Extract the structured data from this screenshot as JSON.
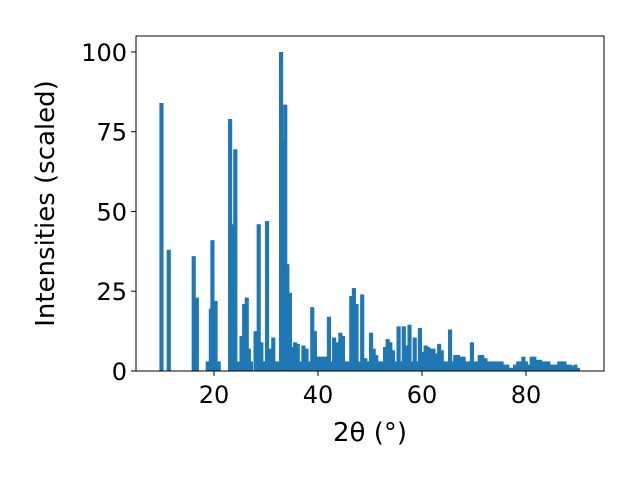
{
  "chart_data": {
    "type": "bar",
    "xlabel": "2θ (°)",
    "ylabel": "Intensities (scaled)",
    "xlim": [
      5,
      95
    ],
    "ylim": [
      0,
      105
    ],
    "xticks": [
      "20",
      "40",
      "60",
      "80"
    ],
    "yticks": [
      "0",
      "25",
      "50",
      "75",
      "100"
    ],
    "grid": false,
    "color": "#1f77b4",
    "bar_width": 0.8,
    "x": [
      9.9,
      11.3,
      16.1,
      16.7,
      18.8,
      19.4,
      19.7,
      20.3,
      20.9,
      23.1,
      23.6,
      24.1,
      24.5,
      25.3,
      25.8,
      26.3,
      26.7,
      27.1,
      28.0,
      28.6,
      29.1,
      29.7,
      30.2,
      30.8,
      31.4,
      31.9,
      32.4,
      32.9,
      33.3,
      33.7,
      34.1,
      34.6,
      35.1,
      35.6,
      36.1,
      36.7,
      37.2,
      37.8,
      38.3,
      38.9,
      39.4,
      39.9,
      40.4,
      41.0,
      41.6,
      42.1,
      42.6,
      43.1,
      43.7,
      44.3,
      44.8,
      45.3,
      45.9,
      46.4,
      46.9,
      47.4,
      48.0,
      48.5,
      49.1,
      49.6,
      50.2,
      50.7,
      51.2,
      51.8,
      52.3,
      52.9,
      53.4,
      53.9,
      54.4,
      55.0,
      55.5,
      56.0,
      56.5,
      57.0,
      57.6,
      58.1,
      58.6,
      59.1,
      59.6,
      60.2,
      60.7,
      61.2,
      61.7,
      62.2,
      62.8,
      63.3,
      63.8,
      64.4,
      64.9,
      65.4,
      65.9,
      66.4,
      66.9,
      67.5,
      68.0,
      68.5,
      69.1,
      69.6,
      70.1,
      70.6,
      71.1,
      71.6,
      72.2,
      72.7,
      73.2,
      73.7,
      74.3,
      74.8,
      75.3,
      75.8,
      76.4,
      76.9,
      77.4,
      77.9,
      78.5,
      79.0,
      79.5,
      80.0,
      80.6,
      81.1,
      81.6,
      82.2,
      82.7,
      83.2,
      83.7,
      84.3,
      84.8,
      85.3,
      85.8,
      86.4,
      86.9,
      87.4,
      87.9,
      88.5,
      89.0,
      89.5,
      90.0
    ],
    "values": [
      84,
      38,
      36,
      23,
      3,
      19.5,
      41,
      22,
      3,
      79,
      46,
      69.5,
      3,
      11,
      21,
      23,
      7,
      3,
      12.5,
      46,
      9,
      3,
      47,
      7,
      10.5,
      3,
      3,
      100,
      72,
      83.5,
      33.5,
      24.5,
      7.5,
      9,
      8.5,
      3,
      8,
      7,
      3,
      20,
      12.5,
      4.5,
      4.5,
      4.5,
      4.5,
      17,
      3,
      10.5,
      9,
      12,
      11,
      3,
      3,
      23.5,
      26,
      21,
      3,
      24,
      4,
      3,
      12,
      7,
      5,
      3,
      3,
      7.5,
      10,
      9,
      6.5,
      3,
      14,
      3,
      14,
      8,
      14.5,
      3,
      10.5,
      3,
      13.5,
      6,
      8,
      7.5,
      7,
      7,
      5.5,
      8.5,
      6.5,
      3,
      3,
      13,
      3,
      5,
      5,
      4.5,
      4.5,
      3,
      3,
      9,
      3,
      3,
      5,
      5,
      4,
      3,
      3,
      3,
      3,
      3,
      3,
      2,
      2,
      1,
      1,
      2,
      3,
      3,
      4.5,
      3,
      2,
      4.5,
      4.5,
      3.5,
      3.5,
      3,
      3,
      3,
      2,
      2,
      2,
      3,
      3,
      3,
      2,
      2,
      1.5,
      2,
      1
    ]
  }
}
